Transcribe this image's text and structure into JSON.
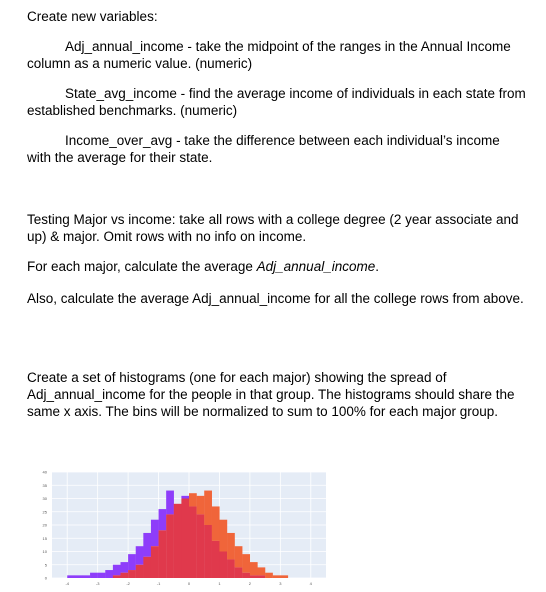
{
  "doc": {
    "heading": "Create new variables:",
    "var1": "Adj_annual_income - take the midpoint of the ranges in the Annual Income column as a numeric value. (numeric)",
    "var2": "State_avg_income - find the average income of individuals in each state from established benchmarks. (numeric)",
    "var3": "Income_over_avg - take the difference between each individual’s income with the average for their state.",
    "testing": "Testing Major vs income: take all rows with a college degree (2 year associate and up) & major. Omit rows with no info on income.",
    "each_major_prefix": "For each major, calculate the average ",
    "each_major_var": "Adj_annual_income",
    "each_major_suffix": ".",
    "also": "Also, calculate the average Adj_annual_income for all the college rows from above.",
    "histograms": "Create a set of histograms (one for each major) showing the spread of Adj_annual_income for the people in that group. The histograms should share the same x axis. The bins will be normalized to sum to 100% for each major group."
  },
  "chart_data": {
    "type": "bar",
    "title": "",
    "xlabel": "",
    "ylabel": "",
    "ylim": [
      0,
      40
    ],
    "yticks": [
      "0",
      "5",
      "10",
      "15",
      "20",
      "25",
      "30",
      "35",
      "40"
    ],
    "xticks": [
      "-4",
      "-3",
      "-2",
      "-1",
      "0",
      "1",
      "2",
      "3",
      "4"
    ],
    "xlim": [
      -4.5,
      4.5
    ],
    "bin_width": 0.25,
    "grid": true,
    "legend": "none",
    "colors": {
      "background": "#e5ecf6",
      "series_a": "#8e3dfa",
      "series_b": "#f0653a",
      "overlap": "#e0394c",
      "grid": "#ffffff",
      "tick": "#555555"
    },
    "series": [
      {
        "x0": -4.0,
        "values": [
          1,
          1,
          1,
          2,
          2,
          3,
          5,
          6,
          9,
          12,
          17,
          22,
          26,
          33,
          28,
          31,
          27,
          24,
          20,
          14,
          10,
          7,
          4,
          2,
          1,
          1
        ]
      },
      {
        "x0": -2.5,
        "values": [
          1,
          2,
          3,
          5,
          8,
          12,
          18,
          24,
          28,
          30,
          32,
          31,
          33,
          27,
          22,
          17,
          12,
          9,
          6,
          4,
          2,
          1,
          1
        ]
      }
    ]
  }
}
